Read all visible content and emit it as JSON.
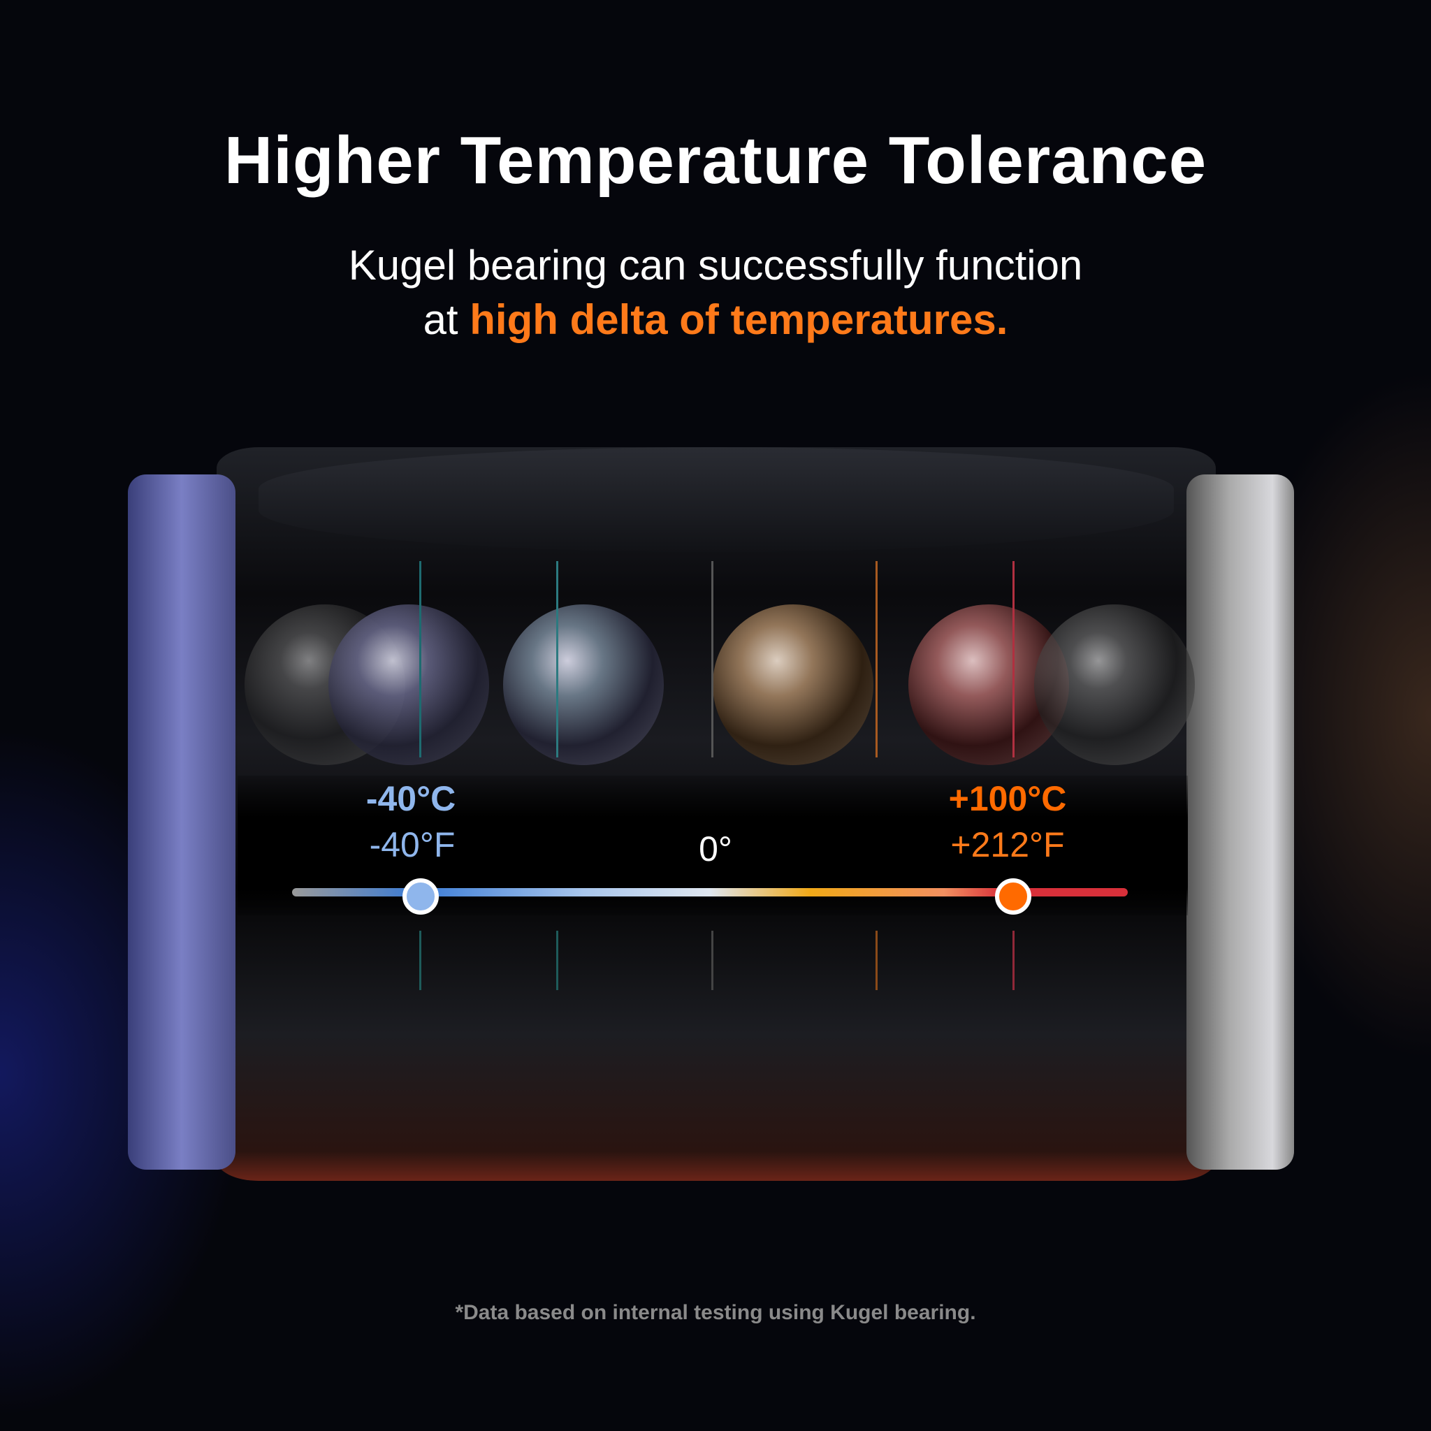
{
  "title": "Higher Temperature Tolerance",
  "subtitle": {
    "line1": "Kugel bearing can successfully function",
    "line2_prefix": "at ",
    "line2_highlight": "high delta of temperatures."
  },
  "scale": {
    "min_c": "-40°C",
    "min_f": "-40°F",
    "zero": "0°",
    "max_c": "+100°C",
    "max_f": "+212°F",
    "min_color": "#8fb6ec",
    "max_color": "#ff6a00"
  },
  "footnote": "*Data based on internal testing using Kugel bearing."
}
